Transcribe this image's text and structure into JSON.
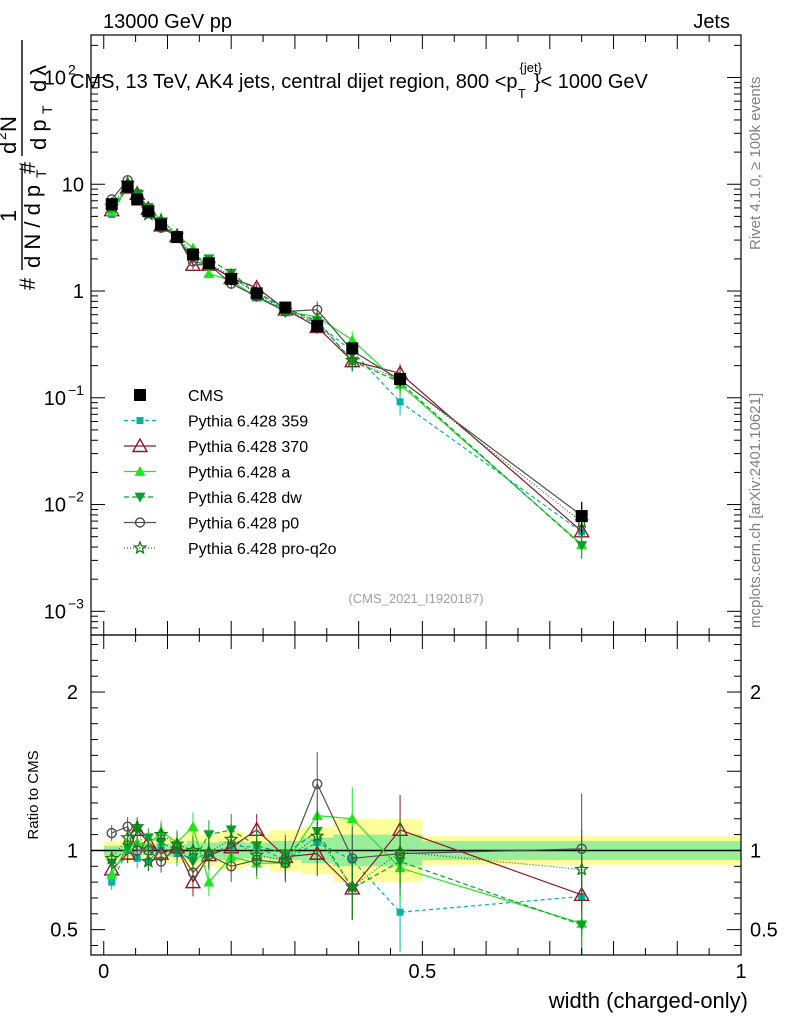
{
  "header": {
    "left": "13000 GeV pp",
    "right": "Jets"
  },
  "side_labels": {
    "rivet": "Rivet 4.1.0, ≥ 100k events",
    "mcplots": "mcplots.cern.ch [arXiv:2401.10621]"
  },
  "analysis_id": "(CMS_2021_I1920187)",
  "chart_data": {
    "type": "scatter",
    "title": "CMS, 13 TeV, AK4 jets, central dijet region, 800 <p_T^{jet}< 1000 GeV",
    "title_parts": {
      "a": "CMS, 13 TeV, AK4 jets, central dijet region, 800 <p",
      "sup": "{jet}",
      "sub": "T",
      "b": "}< 1000 GeV"
    },
    "xlabel": "width (charged-only)",
    "ylabel_main": "1 / (dN / dp_T) · d²N / (dp_T dλ)",
    "ylabel_ratio": "Ratio to CMS",
    "xlim": [
      -0.02,
      1.0
    ],
    "ylim_main": [
      0.0006,
      250
    ],
    "ylim_ratio": [
      0.34,
      2.36
    ],
    "yscale_main": "log",
    "x_ticks": [
      {
        "v": 0,
        "label": "0"
      },
      {
        "v": 0.5,
        "label": "0.5"
      },
      {
        "v": 1,
        "label": "1"
      }
    ],
    "y_ticks_main": [
      {
        "v": 0.001,
        "base": "10",
        "exp": "−3"
      },
      {
        "v": 0.01,
        "base": "10",
        "exp": "−2"
      },
      {
        "v": 0.1,
        "base": "10",
        "exp": "−1"
      },
      {
        "v": 1,
        "base": "1",
        "exp": ""
      },
      {
        "v": 10,
        "base": "10",
        "exp": ""
      },
      {
        "v": 100,
        "base": "10",
        "exp": "2"
      }
    ],
    "y_ticks_ratio": [
      {
        "v": 0.5,
        "label": "0.5"
      },
      {
        "v": 1,
        "label": "1"
      },
      {
        "v": 2,
        "label": "2"
      }
    ],
    "x": [
      0.0125,
      0.0375,
      0.0525,
      0.07,
      0.09,
      0.115,
      0.14,
      0.165,
      0.2,
      0.24,
      0.285,
      0.335,
      0.39,
      0.465,
      0.75
    ],
    "bin_edges": [
      0,
      0.025,
      0.045,
      0.06,
      0.08,
      0.1,
      0.13,
      0.15,
      0.18,
      0.22,
      0.26,
      0.31,
      0.36,
      0.42,
      0.5,
      1.0
    ],
    "data": {
      "name": "CMS",
      "values": [
        6.5,
        9.5,
        7.2,
        5.6,
        4.2,
        3.2,
        2.2,
        1.82,
        1.3,
        0.95,
        0.7,
        0.47,
        0.29,
        0.15,
        0.0078
      ],
      "err_rel": [
        0.05,
        0.04,
        0.04,
        0.04,
        0.04,
        0.05,
        0.06,
        0.06,
        0.07,
        0.07,
        0.08,
        0.1,
        0.12,
        0.14,
        0.35
      ],
      "band_inner": [
        0.03,
        0.03,
        0.03,
        0.03,
        0.03,
        0.04,
        0.06,
        0.05,
        0.06,
        0.05,
        0.06,
        0.08,
        0.1,
        0.1,
        0.06
      ],
      "band_outer": [
        0.06,
        0.07,
        0.07,
        0.06,
        0.07,
        0.08,
        0.13,
        0.1,
        0.12,
        0.1,
        0.13,
        0.15,
        0.2,
        0.2,
        0.09
      ]
    },
    "series": [
      {
        "name": "Pythia 6.428 359",
        "color": "#00b5a0",
        "dash": "4,3",
        "marker": "square-small",
        "ratio": [
          0.8,
          1.0,
          0.95,
          0.93,
          1.02,
          0.98,
          0.95,
          0.98,
          1.03,
          1.02,
          0.94,
          1.05,
          0.94,
          0.61,
          0.71
        ],
        "ratio_err": [
          0.05,
          0.06,
          0.06,
          0.06,
          0.07,
          0.08,
          0.09,
          0.09,
          0.1,
          0.1,
          0.12,
          0.14,
          0.17,
          0.25,
          0.25
        ]
      },
      {
        "name": "Pythia 6.428 370",
        "color": "#8b1a2a",
        "dash": "",
        "marker": "triangle-open",
        "ratio": [
          0.88,
          0.98,
          1.13,
          1.05,
          0.98,
          1.02,
          0.8,
          0.97,
          1.02,
          1.13,
          0.96,
          0.98,
          0.76,
          1.13,
          0.72
        ],
        "ratio_err": [
          0.05,
          0.06,
          0.06,
          0.06,
          0.07,
          0.08,
          0.09,
          0.09,
          0.1,
          0.1,
          0.12,
          0.14,
          0.2,
          0.22,
          0.25
        ]
      },
      {
        "name": "Pythia 6.428 a",
        "color": "#1ee61e",
        "dash": "",
        "marker": "triangle",
        "ratio": [
          0.85,
          1.02,
          1.05,
          1.03,
          1.12,
          1.05,
          1.15,
          0.8,
          0.96,
          0.92,
          0.92,
          1.22,
          1.2,
          0.89,
          0.54
        ],
        "ratio_err": [
          0.05,
          0.06,
          0.06,
          0.06,
          0.07,
          0.08,
          0.09,
          0.09,
          0.1,
          0.1,
          0.12,
          0.14,
          0.2,
          0.22,
          0.25
        ]
      },
      {
        "name": "Pythia 6.428 dw",
        "color": "#0aa02a",
        "dash": "5,3",
        "marker": "triangle-down",
        "ratio": [
          0.92,
          1.02,
          1.13,
          1.08,
          1.05,
          1.0,
          0.93,
          1.1,
          1.13,
          1.03,
          0.98,
          1.12,
          0.76,
          0.93,
          0.53
        ],
        "ratio_err": [
          0.05,
          0.06,
          0.06,
          0.06,
          0.07,
          0.08,
          0.09,
          0.09,
          0.1,
          0.1,
          0.12,
          0.14,
          0.2,
          0.22,
          0.25
        ]
      },
      {
        "name": "Pythia 6.428 p0",
        "color": "#505050",
        "dash": "",
        "marker": "circle-open",
        "ratio": [
          1.11,
          1.15,
          1.0,
          1.0,
          0.93,
          1.02,
          0.86,
          0.97,
          0.9,
          0.94,
          0.92,
          1.42,
          0.95,
          0.98,
          1.01
        ],
        "ratio_err": [
          0.05,
          0.06,
          0.06,
          0.06,
          0.07,
          0.08,
          0.09,
          0.09,
          0.1,
          0.1,
          0.12,
          0.2,
          0.2,
          0.22,
          0.35
        ]
      },
      {
        "name": "Pythia 6.428 pro-q2o",
        "color": "#157a15",
        "dash": "1,2",
        "marker": "star",
        "ratio": [
          0.95,
          1.08,
          1.15,
          0.93,
          1.1,
          1.04,
          1.0,
          0.99,
          1.07,
          0.97,
          0.94,
          1.09,
          0.77,
          0.99,
          0.88
        ],
        "ratio_err": [
          0.05,
          0.06,
          0.06,
          0.06,
          0.07,
          0.08,
          0.09,
          0.09,
          0.1,
          0.1,
          0.12,
          0.14,
          0.2,
          0.22,
          0.25
        ]
      }
    ],
    "legend": [
      "CMS",
      "Pythia 6.428 359",
      "Pythia 6.428 370",
      "Pythia 6.428 a",
      "Pythia 6.428 dw",
      "Pythia 6.428 p0",
      "Pythia 6.428 pro-q2o"
    ],
    "legend_position": "left-center"
  }
}
